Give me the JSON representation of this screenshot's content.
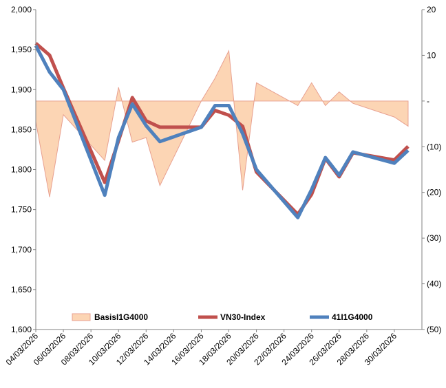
{
  "chart_data": {
    "type": "line",
    "x": [
      "04/03/2026",
      "05/03/2026",
      "06/03/2026",
      "09/03/2026",
      "10/03/2026",
      "11/03/2026",
      "12/03/2026",
      "13/03/2026",
      "16/03/2026",
      "17/03/2026",
      "18/03/2026",
      "19/03/2026",
      "20/03/2026",
      "23/03/2026",
      "24/03/2026",
      "25/03/2026",
      "26/03/2026",
      "27/03/2026",
      "30/03/2026",
      "31/03/2026"
    ],
    "xticks": [
      "04/03/2026",
      "06/03/2026",
      "08/03/2026",
      "10/03/2026",
      "12/03/2026",
      "14/03/2026",
      "16/03/2026",
      "18/03/2026",
      "20/03/2026",
      "22/03/2026",
      "24/03/2026",
      "26/03/2026",
      "28/03/2026",
      "30/03/2026"
    ],
    "series": [
      {
        "name": "BasisI1G4000",
        "type": "area",
        "axis": "y2",
        "color": "#fcd5b4",
        "edge_color": "#e8a090",
        "values": [
          -4.5,
          -21,
          -3,
          -13,
          3,
          -9,
          -8,
          -18.5,
          0,
          5,
          11,
          -19.5,
          4,
          -1,
          4,
          -1,
          2,
          -0.5,
          -3.5,
          -5.5
        ]
      },
      {
        "name": "VN30-Index",
        "type": "line",
        "color": "#c0504d",
        "values": [
          1958,
          1943,
          1902,
          1784,
          1836,
          1890,
          1861,
          1853,
          1853,
          1874,
          1868,
          1854,
          1797,
          1744,
          1769,
          1814,
          1791,
          1821,
          1812,
          1829
        ]
      },
      {
        "name": "41I1G4000",
        "type": "line",
        "color": "#4f81bd",
        "values": [
          1955,
          1922,
          1900,
          1768,
          1840,
          1882,
          1855,
          1835,
          1853,
          1880,
          1880,
          1845,
          1800,
          1740,
          1775,
          1815,
          1793,
          1822,
          1808,
          1824
        ]
      }
    ],
    "ylim": [
      1600,
      2000
    ],
    "yticks": [
      {
        "value": 1600,
        "label": "1,600"
      },
      {
        "value": 1650,
        "label": "1,650"
      },
      {
        "value": 1700,
        "label": "1,700"
      },
      {
        "value": 1750,
        "label": "1,750"
      },
      {
        "value": 1800,
        "label": "1,800"
      },
      {
        "value": 1850,
        "label": "1,850"
      },
      {
        "value": 1900,
        "label": "1,900"
      },
      {
        "value": 1950,
        "label": "1,950"
      },
      {
        "value": 2000,
        "label": "2,000"
      }
    ],
    "y2lim": [
      -50,
      20
    ],
    "y2ticks": [
      {
        "value": -50,
        "label": "(50)"
      },
      {
        "value": -40,
        "label": "(40)"
      },
      {
        "value": -30,
        "label": "(30)"
      },
      {
        "value": -20,
        "label": "(20)"
      },
      {
        "value": -10,
        "label": "(10)"
      },
      {
        "value": 0,
        "label": "-"
      },
      10,
      20
    ],
    "legend": "bottom"
  }
}
